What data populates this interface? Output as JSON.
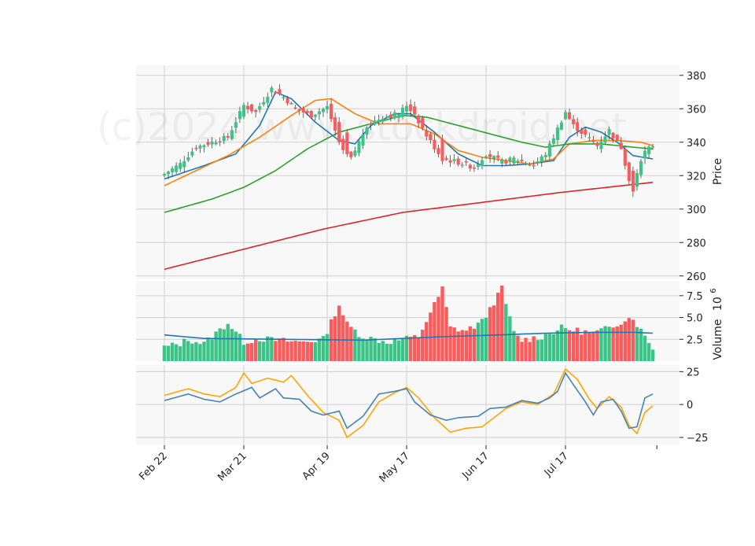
{
  "chart_data": {
    "type": "candlestick",
    "watermark": "(c)2024 www.stockdroid.net",
    "colors": {
      "up": "#3cc488",
      "down": "#fb5b5b",
      "ma_short": "#1f77b4",
      "ma_mid": "#ff7f0e",
      "ma_long": "#2ca02c",
      "ma_200": "#d62728",
      "volume_ma": "#1f77b4",
      "osc_fast": "#4682b4",
      "osc_slow": "#ffa500",
      "panel_bg": "#f8f8f8",
      "grid": "#d0d0d0"
    },
    "x_ticks": [
      {
        "label": "Feb 22",
        "index": 0
      },
      {
        "label": "Mar 21",
        "index": 20
      },
      {
        "label": "Apr 19",
        "index": 41
      },
      {
        "label": "May 17",
        "index": 61
      },
      {
        "label": "Jun 17",
        "index": 81
      },
      {
        "label": "Jul 17",
        "index": 101
      }
    ],
    "price_panel": {
      "ylabel": "Price",
      "ylim": [
        258,
        386
      ],
      "yticks": [
        260,
        280,
        300,
        320,
        340,
        360,
        380
      ],
      "grid": true
    },
    "volume_panel": {
      "ylabel": "Volume",
      "ylabel_exponent": "6",
      "ylim": [
        0,
        9.2
      ],
      "yticks": [
        2.5,
        5.0,
        7.5
      ],
      "ytick_labels": [
        "2.5",
        "5.0",
        "7.5"
      ],
      "grid": true
    },
    "oscillator_panel": {
      "ylim": [
        -31,
        30
      ],
      "yticks": [
        -25,
        0,
        25
      ],
      "ytick_labels": [
        "−25",
        "0",
        "25"
      ],
      "grid": true
    },
    "close_anchors": [
      [
        0,
        321
      ],
      [
        4,
        327
      ],
      [
        8,
        337
      ],
      [
        12,
        340
      ],
      [
        16,
        343
      ],
      [
        20,
        362
      ],
      [
        23,
        358
      ],
      [
        27,
        372
      ],
      [
        30,
        367
      ],
      [
        33,
        360
      ],
      [
        37,
        356
      ],
      [
        41,
        361
      ],
      [
        44,
        340
      ],
      [
        47,
        330
      ],
      [
        51,
        350
      ],
      [
        55,
        355
      ],
      [
        59,
        357
      ],
      [
        61,
        362
      ],
      [
        63,
        357
      ],
      [
        66,
        344
      ],
      [
        70,
        330
      ],
      [
        74,
        328
      ],
      [
        78,
        325
      ],
      [
        81,
        333
      ],
      [
        85,
        328
      ],
      [
        88,
        330
      ],
      [
        91,
        328
      ],
      [
        93,
        326
      ],
      [
        96,
        333
      ],
      [
        99,
        348
      ],
      [
        101,
        358
      ],
      [
        103,
        350
      ],
      [
        106,
        344
      ],
      [
        109,
        338
      ],
      [
        112,
        347
      ],
      [
        115,
        337
      ],
      [
        117,
        318
      ],
      [
        118,
        312
      ],
      [
        119,
        322
      ],
      [
        120,
        330
      ],
      [
        121,
        334
      ],
      [
        122,
        336
      ],
      [
        123,
        338
      ]
    ],
    "moving_averages": [
      {
        "key": "ma_short",
        "points": [
          [
            0,
            318
          ],
          [
            10,
            326
          ],
          [
            18,
            333
          ],
          [
            24,
            350
          ],
          [
            28,
            370
          ],
          [
            32,
            366
          ],
          [
            38,
            352
          ],
          [
            44,
            341
          ],
          [
            48,
            339
          ],
          [
            52,
            350
          ],
          [
            58,
            357
          ],
          [
            62,
            357
          ],
          [
            68,
            346
          ],
          [
            74,
            333
          ],
          [
            80,
            326
          ],
          [
            86,
            326
          ],
          [
            92,
            327
          ],
          [
            98,
            329
          ],
          [
            102,
            343
          ],
          [
            106,
            349
          ],
          [
            110,
            346
          ],
          [
            114,
            340
          ],
          [
            118,
            332
          ],
          [
            123,
            330
          ]
        ]
      },
      {
        "key": "ma_mid",
        "points": [
          [
            0,
            314
          ],
          [
            8,
            323
          ],
          [
            16,
            332
          ],
          [
            24,
            343
          ],
          [
            32,
            356
          ],
          [
            38,
            365
          ],
          [
            42,
            366
          ],
          [
            48,
            357
          ],
          [
            54,
            351
          ],
          [
            62,
            351
          ],
          [
            68,
            345
          ],
          [
            74,
            335
          ],
          [
            80,
            331
          ],
          [
            86,
            329
          ],
          [
            92,
            327
          ],
          [
            98,
            330
          ],
          [
            102,
            339
          ],
          [
            108,
            341
          ],
          [
            114,
            341
          ],
          [
            120,
            340
          ],
          [
            123,
            338
          ]
        ]
      },
      {
        "key": "ma_long",
        "points": [
          [
            0,
            298
          ],
          [
            12,
            306
          ],
          [
            20,
            313
          ],
          [
            28,
            323
          ],
          [
            36,
            336
          ],
          [
            44,
            346
          ],
          [
            52,
            351
          ],
          [
            60,
            356
          ],
          [
            66,
            355
          ],
          [
            74,
            350
          ],
          [
            82,
            345
          ],
          [
            90,
            340
          ],
          [
            96,
            337
          ],
          [
            102,
            339
          ],
          [
            110,
            339
          ],
          [
            118,
            337
          ],
          [
            123,
            336
          ]
        ]
      },
      {
        "key": "ma_200",
        "points": [
          [
            0,
            264
          ],
          [
            20,
            276
          ],
          [
            40,
            288
          ],
          [
            60,
            298
          ],
          [
            80,
            304
          ],
          [
            100,
            310
          ],
          [
            123,
            316
          ]
        ]
      }
    ],
    "volume_anchors": [
      [
        0,
        1.6
      ],
      [
        4,
        2.0
      ],
      [
        6,
        2.5
      ],
      [
        10,
        2.0
      ],
      [
        16,
        4.4
      ],
      [
        20,
        2.2
      ],
      [
        24,
        2.6
      ],
      [
        28,
        2.4
      ],
      [
        34,
        2.2
      ],
      [
        40,
        2.5
      ],
      [
        44,
        6.5
      ],
      [
        46,
        4.2
      ],
      [
        50,
        2.8
      ],
      [
        56,
        2.2
      ],
      [
        64,
        2.8
      ],
      [
        70,
        8.3
      ],
      [
        72,
        3.8
      ],
      [
        76,
        3.5
      ],
      [
        80,
        4.5
      ],
      [
        85,
        8.3
      ],
      [
        88,
        3.2
      ],
      [
        90,
        2.4
      ],
      [
        95,
        2.8
      ],
      [
        100,
        3.8
      ],
      [
        104,
        3.5
      ],
      [
        108,
        3.2
      ],
      [
        112,
        3.8
      ],
      [
        116,
        4.8
      ],
      [
        118,
        5.0
      ],
      [
        120,
        3.5
      ],
      [
        123,
        1.6
      ]
    ],
    "volume_ma_points": [
      [
        0,
        3.0
      ],
      [
        10,
        2.6
      ],
      [
        30,
        2.5
      ],
      [
        50,
        2.4
      ],
      [
        60,
        2.6
      ],
      [
        70,
        2.8
      ],
      [
        84,
        3.0
      ],
      [
        96,
        3.2
      ],
      [
        108,
        3.3
      ],
      [
        118,
        3.3
      ],
      [
        123,
        3.2
      ]
    ],
    "oscillator": {
      "fast_points": [
        [
          0,
          3
        ],
        [
          6,
          8
        ],
        [
          10,
          4
        ],
        [
          14,
          2
        ],
        [
          18,
          8
        ],
        [
          22,
          13
        ],
        [
          24,
          5
        ],
        [
          28,
          12
        ],
        [
          30,
          5
        ],
        [
          34,
          4
        ],
        [
          37,
          -5
        ],
        [
          40,
          -8
        ],
        [
          44,
          -5
        ],
        [
          46,
          -18
        ],
        [
          50,
          -9
        ],
        [
          54,
          8
        ],
        [
          58,
          10
        ],
        [
          61,
          12
        ],
        [
          63,
          2
        ],
        [
          67,
          -8
        ],
        [
          71,
          -12
        ],
        [
          74,
          -10
        ],
        [
          79,
          -9
        ],
        [
          82,
          -3
        ],
        [
          86,
          -2
        ],
        [
          90,
          3
        ],
        [
          94,
          1
        ],
        [
          97,
          5
        ],
        [
          99,
          10
        ],
        [
          101,
          24
        ],
        [
          103,
          15
        ],
        [
          106,
          2
        ],
        [
          108,
          -8
        ],
        [
          110,
          2
        ],
        [
          113,
          4
        ],
        [
          115,
          -5
        ],
        [
          117,
          -18
        ],
        [
          119,
          -17
        ],
        [
          121,
          5
        ],
        [
          123,
          8
        ]
      ],
      "slow_points": [
        [
          0,
          7
        ],
        [
          6,
          12
        ],
        [
          10,
          8
        ],
        [
          14,
          6
        ],
        [
          18,
          13
        ],
        [
          20,
          24
        ],
        [
          22,
          16
        ],
        [
          26,
          20
        ],
        [
          30,
          17
        ],
        [
          32,
          22
        ],
        [
          36,
          7
        ],
        [
          40,
          -6
        ],
        [
          44,
          -12
        ],
        [
          46,
          -25
        ],
        [
          50,
          -16
        ],
        [
          54,
          2
        ],
        [
          58,
          9
        ],
        [
          61,
          13
        ],
        [
          64,
          5
        ],
        [
          68,
          -10
        ],
        [
          72,
          -21
        ],
        [
          76,
          -18
        ],
        [
          80,
          -17
        ],
        [
          83,
          -10
        ],
        [
          86,
          -3
        ],
        [
          90,
          2
        ],
        [
          94,
          0
        ],
        [
          98,
          8
        ],
        [
          101,
          27
        ],
        [
          104,
          19
        ],
        [
          107,
          4
        ],
        [
          109,
          -3
        ],
        [
          112,
          6
        ],
        [
          115,
          -2
        ],
        [
          117,
          -16
        ],
        [
          119,
          -22
        ],
        [
          121,
          -6
        ],
        [
          123,
          -1
        ]
      ]
    }
  }
}
